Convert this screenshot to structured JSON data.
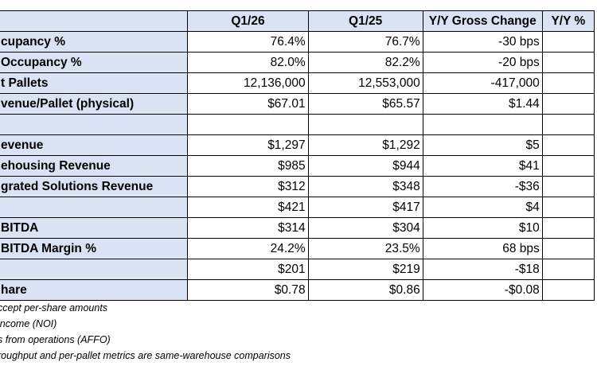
{
  "header": [
    "",
    "Q1/26",
    "Q1/25",
    "Y/Y Gross Change",
    "Y/Y %"
  ],
  "rows": [
    {
      "label": "cupancy %",
      "v1": "76.4%",
      "v2": "76.7%",
      "v3": "-30 bps",
      "v4": ""
    },
    {
      "label": "Occupancy %",
      "v1": "82.0%",
      "v2": "82.2%",
      "v3": "-20 bps",
      "v4": ""
    },
    {
      "label": "t Pallets",
      "v1": "12,136,000",
      "v2": "12,553,000",
      "v3": "-417,000",
      "v4": ""
    },
    {
      "label": "venue/Pallet (physical)",
      "v1": "$67.01",
      "v2": "$65.57",
      "v3": "$1.44",
      "v4": ""
    },
    {
      "label": "",
      "v1": "",
      "v2": "",
      "v3": "",
      "v4": ""
    },
    {
      "label": "evenue",
      "v1": "$1,297",
      "v2": "$1,292",
      "v3": "$5",
      "v4": ""
    },
    {
      "label": "ehousing Revenue",
      "v1": "$985",
      "v2": "$944",
      "v3": "$41",
      "v4": ""
    },
    {
      "label": "grated Solutions Revenue",
      "v1": "$312",
      "v2": "$348",
      "v3": "-$36",
      "v4": ""
    },
    {
      "label": "",
      "v1": "$421",
      "v2": "$417",
      "v3": "$4",
      "v4": ""
    },
    {
      "label": "BITDA",
      "v1": "$314",
      "v2": "$304",
      "v3": "$10",
      "v4": ""
    },
    {
      "label": "BITDA Margin %",
      "v1": "24.2%",
      "v2": "23.5%",
      "v3": "68 bps",
      "v4": ""
    },
    {
      "label": "",
      "v1": "$201",
      "v2": "$219",
      "v3": "-$18",
      "v4": ""
    },
    {
      "label": "hare",
      "v1": "$0.78",
      "v2": "$0.86",
      "v3": "-$0.08",
      "v4": ""
    }
  ],
  "notes": [
    "ccept per-share amounts",
    "income (NOI)",
    "s from operations (AFFO)",
    "roughput and per-pallet metrics are same-warehouse comparisons"
  ],
  "colors": {
    "header_fill": "#dae3f3",
    "border": "#000000"
  }
}
